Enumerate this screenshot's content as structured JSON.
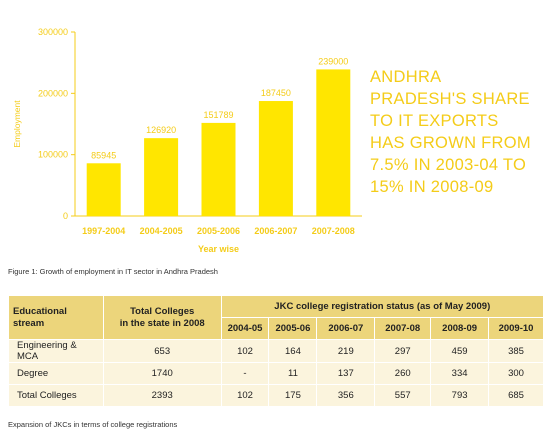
{
  "chart_data": {
    "type": "bar",
    "categories": [
      "1997-2004",
      "2004-2005",
      "2005-2006",
      "2006-2007",
      "2007-2008"
    ],
    "values": [
      85945,
      126920,
      151789,
      187450,
      239000
    ],
    "data_labels": [
      "85945",
      "126920",
      "151789",
      "187450",
      "239000"
    ],
    "yticks": [
      "0",
      "100000",
      "200000",
      "300000"
    ],
    "ylim": [
      0,
      300000
    ],
    "xlabel": "Year wise",
    "ylabel": "Employment",
    "title": "",
    "grid": false,
    "bar_color": "#ffe600",
    "axis_color": "#f4cc19"
  },
  "callout": {
    "lines": [
      "ANDHRA",
      "PRADESH'S SHARE",
      "TO IT EXPORTS",
      "HAS GROWN FROM",
      "7.5% IN 2003-04 TO",
      "15% IN 2008-09"
    ]
  },
  "figure_caption": "Figure 1: Growth of employment in IT sector in Andhra Pradesh",
  "table": {
    "col1_header": [
      "Educational",
      "stream"
    ],
    "col2_header": [
      "Total Colleges",
      "in the state in 2008"
    ],
    "group_header": "JKC college registration status (as of May 2009)",
    "years": [
      "2004-05",
      "2005-06",
      "2006-07",
      "2007-08",
      "2008-09",
      "2009-10"
    ],
    "rows": [
      {
        "stream": "Engineering & MCA",
        "total": "653",
        "values": [
          "102",
          "164",
          "219",
          "297",
          "459",
          "385"
        ]
      },
      {
        "stream": "Degree",
        "total": "1740",
        "values": [
          "-",
          "11",
          "137",
          "260",
          "334",
          "300"
        ]
      },
      {
        "stream": "Total Colleges",
        "total": "2393",
        "values": [
          "102",
          "175",
          "356",
          "557",
          "793",
          "685"
        ]
      }
    ]
  },
  "table_caption": "Expansion of JKCs in terms of college registrations",
  "colors": {
    "accent": "#f4cc19",
    "header_fill": "#ecd57b",
    "cell_fill": "#fbf4dd"
  }
}
